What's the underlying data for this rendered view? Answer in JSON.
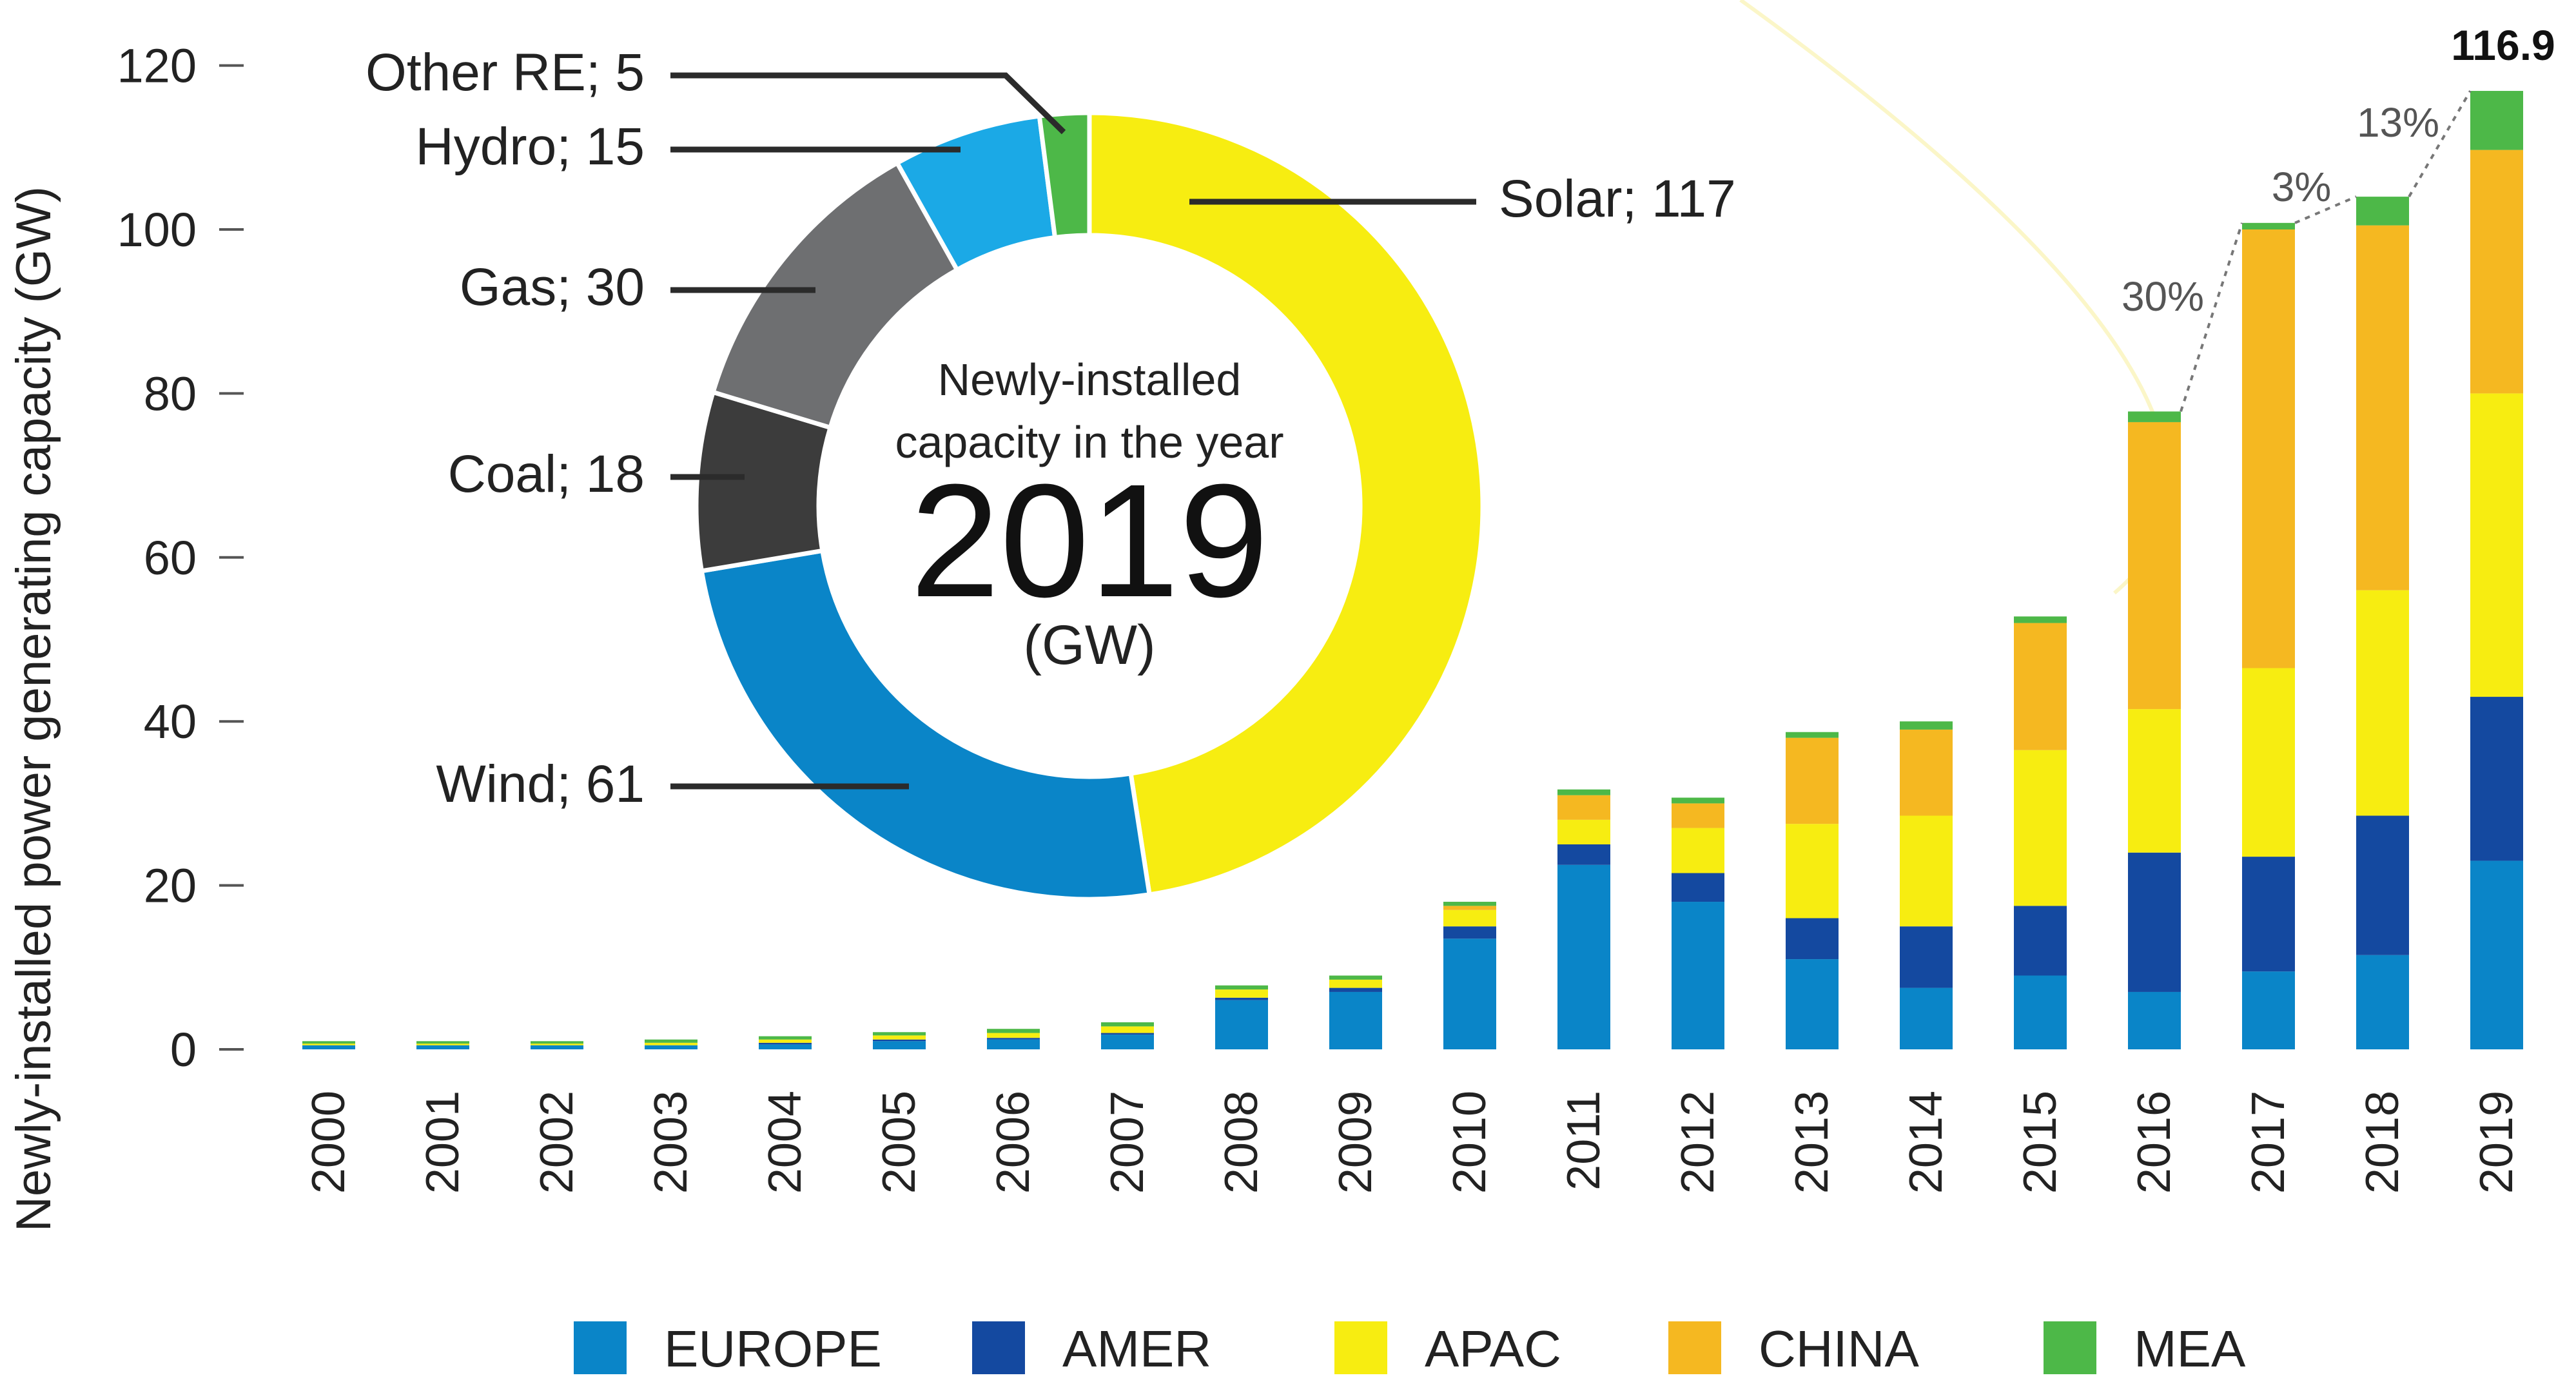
{
  "chart_data": [
    {
      "type": "bar",
      "stacked": true,
      "ylabel": "Newly-installed power generating capacity (GW)",
      "xlabel": "",
      "ylim": [
        0,
        120
      ],
      "yticks": [
        "0",
        "20",
        "40",
        "60",
        "80",
        "100",
        "120"
      ],
      "grid": false,
      "categories": [
        "2000",
        "2001",
        "2002",
        "2003",
        "2004",
        "2005",
        "2006",
        "2007",
        "2008",
        "2009",
        "2010",
        "2011",
        "2012",
        "2013",
        "2014",
        "2015",
        "2016",
        "2017",
        "2018",
        "2019"
      ],
      "series": [
        {
          "name": "EUROPE",
          "color": "#0a85c8",
          "values": [
            0.5,
            0.5,
            0.5,
            0.5,
            0.6,
            1.0,
            1.2,
            1.8,
            6.0,
            7.0,
            13.5,
            22.5,
            18.0,
            11.0,
            7.5,
            9.0,
            7.0,
            9.5,
            11.5,
            23.0
          ]
        },
        {
          "name": "AMER",
          "color": "#1449a0",
          "values": [
            0,
            0,
            0,
            0,
            0.2,
            0.2,
            0.2,
            0.2,
            0.3,
            0.5,
            1.5,
            2.5,
            3.5,
            5.0,
            7.5,
            8.5,
            17.0,
            14.0,
            17.0,
            20.0
          ]
        },
        {
          "name": "APAC",
          "color": "#f7ed11",
          "values": [
            0.2,
            0.2,
            0.2,
            0.3,
            0.4,
            0.5,
            0.6,
            0.8,
            1.0,
            1.0,
            2.0,
            3.0,
            5.5,
            11.5,
            13.5,
            19.0,
            17.5,
            23.0,
            27.5,
            37.0
          ]
        },
        {
          "name": "CHINA",
          "color": "#f5b821",
          "values": [
            0,
            0,
            0,
            0,
            0,
            0,
            0,
            0,
            0,
            0,
            0.5,
            3.0,
            3.0,
            10.5,
            10.5,
            15.5,
            35.0,
            53.5,
            44.5,
            29.7
          ]
        },
        {
          "name": "MEA",
          "color": "#4db848",
          "values": [
            0.3,
            0.3,
            0.3,
            0.4,
            0.4,
            0.4,
            0.5,
            0.5,
            0.5,
            0.5,
            0.5,
            0.7,
            0.7,
            0.7,
            1.0,
            0.8,
            1.3,
            0.8,
            3.5,
            7.2
          ]
        }
      ],
      "annotations": [
        {
          "text": "30%",
          "from": "2016",
          "to": "2017"
        },
        {
          "text": "3%",
          "from": "2017",
          "to": "2018"
        },
        {
          "text": "13%",
          "from": "2018",
          "to": "2019"
        },
        {
          "text": "116.9",
          "at": "2019"
        }
      ],
      "legend": "bottom"
    },
    {
      "type": "pie",
      "donut": true,
      "center_text": [
        "Newly-installed",
        "capacity in the year",
        "2019",
        "(GW)"
      ],
      "slices": [
        {
          "label": "Solar",
          "value": 117,
          "color": "#f7ed11",
          "text": "Solar; 117"
        },
        {
          "label": "Wind",
          "value": 61,
          "color": "#0a85c8",
          "text": "Wind; 61"
        },
        {
          "label": "Coal",
          "value": 18,
          "color": "#3c3c3c",
          "text": "Coal; 18"
        },
        {
          "label": "Gas",
          "value": 30,
          "color": "#6e6f71",
          "text": "Gas; 30"
        },
        {
          "label": "Hydro",
          "value": 15,
          "color": "#1ba9e6",
          "text": "Hydro; 15"
        },
        {
          "label": "Other RE",
          "value": 5,
          "color": "#4db848",
          "text": "Other RE; 5"
        }
      ]
    }
  ]
}
